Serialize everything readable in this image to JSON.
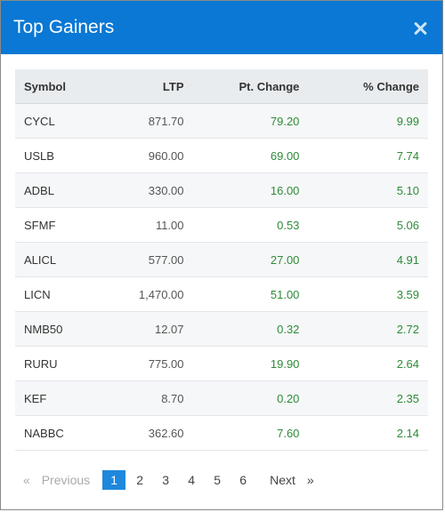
{
  "modal": {
    "title": "Top Gainers",
    "close_label": "×"
  },
  "table": {
    "headers": [
      "Symbol",
      "LTP",
      "Pt. Change",
      "% Change"
    ],
    "rows": [
      {
        "symbol": "CYCL",
        "ltp": "871.70",
        "pt": "79.20",
        "pct": "9.99"
      },
      {
        "symbol": "USLB",
        "ltp": "960.00",
        "pt": "69.00",
        "pct": "7.74"
      },
      {
        "symbol": "ADBL",
        "ltp": "330.00",
        "pt": "16.00",
        "pct": "5.10"
      },
      {
        "symbol": "SFMF",
        "ltp": "11.00",
        "pt": "0.53",
        "pct": "5.06"
      },
      {
        "symbol": "ALICL",
        "ltp": "577.00",
        "pt": "27.00",
        "pct": "4.91"
      },
      {
        "symbol": "LICN",
        "ltp": "1,470.00",
        "pt": "51.00",
        "pct": "3.59"
      },
      {
        "symbol": "NMB50",
        "ltp": "12.07",
        "pt": "0.32",
        "pct": "2.72"
      },
      {
        "symbol": "RURU",
        "ltp": "775.00",
        "pt": "19.90",
        "pct": "2.64"
      },
      {
        "symbol": "KEF",
        "ltp": "8.70",
        "pt": "0.20",
        "pct": "2.35"
      },
      {
        "symbol": "NABBC",
        "ltp": "362.60",
        "pt": "7.60",
        "pct": "2.14"
      }
    ]
  },
  "pagination": {
    "prev_arrow": "«",
    "prev_label": "Previous",
    "pages": [
      "1",
      "2",
      "3",
      "4",
      "5",
      "6"
    ],
    "active_page": "1",
    "next_label": "Next",
    "next_arrow": "»"
  },
  "colors": {
    "header_bg": "#0a78d4",
    "positive": "#2e8b3a",
    "active_page": "#1e88dc"
  }
}
